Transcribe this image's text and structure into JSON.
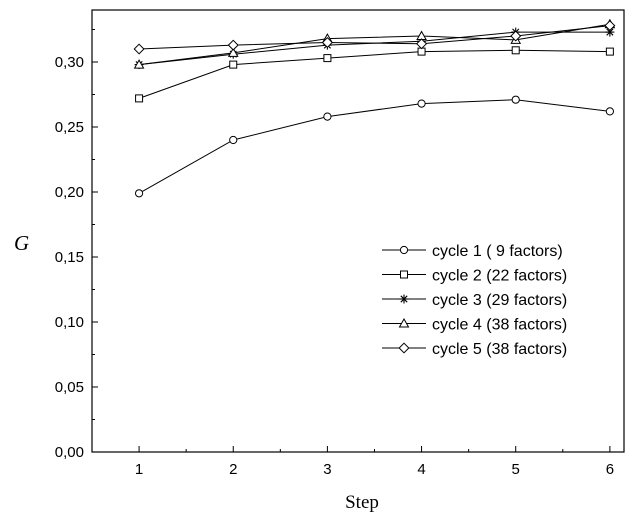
{
  "chart_data": {
    "type": "line",
    "xlabel": "Step",
    "ylabel": "G",
    "x": [
      1,
      2,
      3,
      4,
      5,
      6
    ],
    "xlim": [
      0.5,
      6.15
    ],
    "ylim": [
      0.0,
      0.34
    ],
    "x_ticks": [
      "1",
      "2",
      "3",
      "4",
      "5",
      "6"
    ],
    "y_ticks": [
      "0,00",
      "0,05",
      "0,10",
      "0,15",
      "0,20",
      "0,25",
      "0,30"
    ],
    "legend_position": "center-right",
    "grid": false,
    "series": [
      {
        "name": "cycle 1 ( 9 factors)",
        "marker": "circle",
        "values": [
          0.199,
          0.24,
          0.258,
          0.268,
          0.271,
          0.262
        ]
      },
      {
        "name": "cycle 2 (22 factors)",
        "marker": "square",
        "values": [
          0.272,
          0.298,
          0.303,
          0.308,
          0.309,
          0.308
        ]
      },
      {
        "name": "cycle 3 (29 factors)",
        "marker": "star",
        "values": [
          0.298,
          0.306,
          0.313,
          0.316,
          0.323,
          0.323
        ]
      },
      {
        "name": "cycle 4 (38 factors)",
        "marker": "triangle",
        "values": [
          0.298,
          0.307,
          0.318,
          0.32,
          0.317,
          0.329
        ]
      },
      {
        "name": "cycle 5 (38 factors)",
        "marker": "diamond",
        "values": [
          0.31,
          0.313,
          0.315,
          0.314,
          0.32,
          0.328
        ]
      }
    ]
  }
}
